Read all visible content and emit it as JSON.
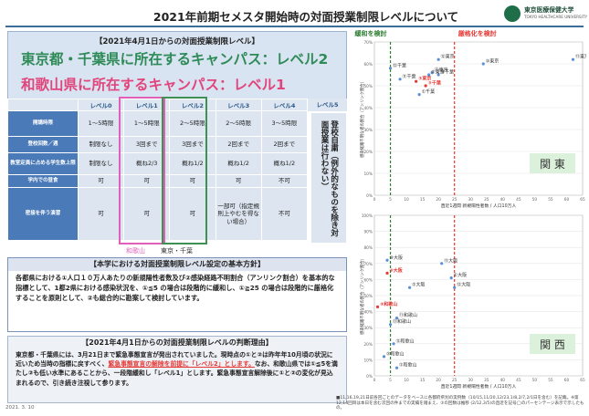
{
  "title": "2021年前期セメスタ開始時の対面授業制限レベルについて",
  "logo": {
    "name": "東京医療保健大学",
    "sub": "TOKYO HEALTHCARE UNIVERSITY"
  },
  "level_box": {
    "header": "【2021年4月1日からの対面授業制限レベル】",
    "line1": "東京都・千葉県に所在するキャンパス：レベル2",
    "line2": "和歌山県に所在するキャンパス：レベル1"
  },
  "level_table": {
    "columns": [
      "レベル0",
      "レベル1",
      "レベル2",
      "レベル3",
      "レベル4",
      "レベル5"
    ],
    "rows": [
      {
        "label": "開講時限",
        "cells": [
          "1〜5時限",
          "1〜5時限",
          "2〜5時限",
          "2〜5時限",
          "3〜5時限"
        ]
      },
      {
        "label": "登校回数／週",
        "cells": [
          "制限なし",
          "3回まで",
          "3回まで",
          "2回まで",
          "2回まで"
        ]
      },
      {
        "label": "教室定員に占める学生数上限",
        "cells": [
          "制限なし",
          "概ね2/3",
          "概ね1/2",
          "概ね1/2",
          "概ね1/2"
        ]
      },
      {
        "label": "学内での昼食",
        "cells": [
          "可",
          "可",
          "可",
          "可",
          "不可"
        ]
      },
      {
        "label": "密接を伴う演習",
        "cells": [
          "可",
          "可",
          "可",
          "一部可（指定規則上やむを得ない場合）",
          "不可"
        ]
      }
    ],
    "level5_note": "登校自粛（例外的なものを除き対面授業は行わない）",
    "caption_level1": "和歌山",
    "caption_level2": "東京・千葉"
  },
  "policy": {
    "header": "【本学における対面授業制限レベル設定の基本方針】",
    "body": "各都県における①人口１０万人あたりの新規陽性者数及び②感染経路不明割合（アンリンク割合）を基本的な指標として、1都2県における感染状況を、①≦5 の場合は段階的に緩和し、①≧25 の場合は段階的に厳格化することを原則として、②も総合的に勘案して検討しています。"
  },
  "reason": {
    "header": "【2021年4月1日からの対面授業制限レベルの判断理由】",
    "body_1": "東京都・千葉県には、3月21日まで緊急事態宣言が発出されていました。現時点の①と②は昨年年10月頃の状況に近いため当時の指標に戻すべく、",
    "body_red": "緊急事態宣言の解除を前提に「レベル2」とします。",
    "body_2": "なお、和歌山県では①≦5を満たし②も低い水準にあることから、一段階緩和し「レベル1」とします。緊急事態宣言解除後に①と②の変化が見込まれるので、引き続き注視して参ります。"
  },
  "date": "2021. 3. 10",
  "footnote": "■11,16,19,21日前各回ごとのデータをベースに各都府県別の実例数（10/15,11/20,12/23,1/8,2/7,2/1日を含む）を記載。※第12,14回目は本日を含む次回の件までの実績を踏まえ、②の回数は推移 (2/12,3/5)の直近を記号◯のパーセンテージ表示で示したもの。",
  "charts": {
    "threshold_left": "緩和を検討",
    "threshold_right": "厳格化を検討",
    "colors": {
      "relax": "#2e7d32",
      "strict": "#e53935",
      "series": "#5b8fd6"
    },
    "kanto": {
      "label": "関 東",
      "xlabel": "直近1週間 新規陽性者数 / 人口10万人",
      "ylabel": "感染経路不明な者の割合（アンリンク割合）",
      "x_ticks": [
        "0",
        "5",
        "10",
        "15",
        "20",
        "25",
        "30",
        "35",
        "40",
        "45",
        "50",
        "55",
        "60",
        "65"
      ],
      "y_ticks": [
        "70%",
        "60%",
        "50%",
        "40%",
        "30%",
        "20%",
        "10%",
        "0%"
      ],
      "points": [
        {
          "label": "①千葉",
          "x": 14,
          "y": 46
        },
        {
          "label": "③千葉",
          "x": 16,
          "y": 50
        },
        {
          "label": "⑩千葉",
          "x": 20,
          "y": 55
        },
        {
          "label": "⑪千葉",
          "x": 8,
          "y": 53
        },
        {
          "label": "⑫千葉",
          "x": 5,
          "y": 58
        },
        {
          "label": "⑬東京",
          "x": 18,
          "y": 56
        },
        {
          "label": "③東京",
          "x": 13,
          "y": 52
        },
        {
          "label": "②東京",
          "x": 17,
          "y": 55
        },
        {
          "label": "⑩東京",
          "x": 34,
          "y": 60
        },
        {
          "label": "⑪東京",
          "x": 62,
          "y": 62
        },
        {
          "label": "⑫東京",
          "x": 20,
          "y": 62
        }
      ]
    },
    "kansai": {
      "label": "関 西",
      "xlabel": "直近1週間 新規陽性者数 / 人口10万人",
      "ylabel": "感染経路不明な者の割合（アンリンク割合）",
      "x_ticks": [
        "0",
        "5",
        "10",
        "15",
        "20",
        "25",
        "30",
        "35",
        "40",
        "45",
        "50",
        "55",
        "60",
        "65"
      ],
      "y_ticks": [
        "100%",
        "90%",
        "80%",
        "70%",
        "60%",
        "50%",
        "40%",
        "30%",
        "20%",
        "10%",
        "0%"
      ],
      "points": [
        {
          "label": "③大阪",
          "x": 4,
          "y": 64
        },
        {
          "label": "⑩大阪",
          "x": 4,
          "y": 72
        },
        {
          "label": "⑪大阪",
          "x": 21,
          "y": 70
        },
        {
          "label": "①大阪",
          "x": 24,
          "y": 61
        },
        {
          "label": "⑫大阪",
          "x": 25,
          "y": 55
        },
        {
          "label": "②大阪",
          "x": 11,
          "y": 55
        },
        {
          "label": "③和歌山",
          "x": 1,
          "y": 43
        },
        {
          "label": "⑪和歌山",
          "x": 7,
          "y": 36
        },
        {
          "label": "⑫和歌山",
          "x": 6,
          "y": 20
        },
        {
          "label": "⑬和歌山",
          "x": 5,
          "y": 32
        },
        {
          "label": "②和歌山",
          "x": 3,
          "y": 12
        },
        {
          "label": "①和歌山",
          "x": 7,
          "y": 5
        }
      ]
    }
  }
}
